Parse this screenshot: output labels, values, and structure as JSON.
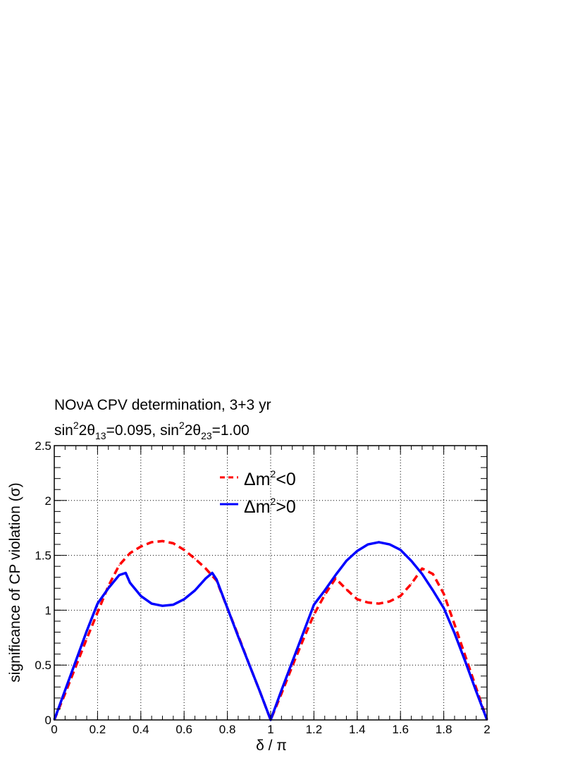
{
  "chart_data": {
    "type": "line",
    "title_line1": "NOνA CPV determination, 3+3 yr",
    "title_line2": {
      "p1": "sin",
      "p2": "2",
      "p3": "2θ",
      "p4": "13",
      "p5": "=0.095, sin",
      "p6": "2",
      "p7": "2θ",
      "p8": "23",
      "p9": "=1.00"
    },
    "xlabel": "δ / π",
    "ylabel": "significance of CP violation (σ)",
    "xlim": [
      0,
      2
    ],
    "ylim": [
      0,
      2.5
    ],
    "x_ticks": [
      "0",
      "0.2",
      "0.4",
      "0.6",
      "0.8",
      "1",
      "1.2",
      "1.4",
      "1.6",
      "1.8",
      "2"
    ],
    "y_ticks": [
      "0",
      "0.5",
      "1",
      "1.5",
      "2",
      "2.5"
    ],
    "grid": true,
    "legend_position": "top-center",
    "series": [
      {
        "name": "Δm²<0",
        "legend_main": "Δm",
        "legend_sup": "2",
        "legend_rest": "<0",
        "color": "#ff0000",
        "style": "dashed",
        "x": [
          0,
          0.05,
          0.1,
          0.15,
          0.2,
          0.25,
          0.3,
          0.35,
          0.4,
          0.45,
          0.5,
          0.55,
          0.6,
          0.65,
          0.7,
          0.75,
          0.8,
          0.85,
          0.9,
          0.95,
          1.0,
          1.05,
          1.1,
          1.15,
          1.2,
          1.25,
          1.3,
          1.35,
          1.4,
          1.45,
          1.5,
          1.55,
          1.6,
          1.65,
          1.7,
          1.75,
          1.8,
          1.85,
          1.9,
          1.95,
          2.0
        ],
        "y": [
          0,
          0.24,
          0.49,
          0.74,
          0.98,
          1.22,
          1.41,
          1.52,
          1.58,
          1.62,
          1.63,
          1.61,
          1.55,
          1.47,
          1.38,
          1.27,
          1.02,
          0.77,
          0.51,
          0.26,
          0,
          0.24,
          0.49,
          0.73,
          0.96,
          1.14,
          1.29,
          1.19,
          1.1,
          1.07,
          1.06,
          1.08,
          1.13,
          1.24,
          1.38,
          1.33,
          1.15,
          0.87,
          0.58,
          0.29,
          0
        ]
      },
      {
        "name": "Δm²>0",
        "legend_main": "Δm",
        "legend_sup": "2",
        "legend_rest": ">0",
        "color": "#0000ff",
        "style": "solid",
        "x": [
          0,
          0.05,
          0.1,
          0.15,
          0.2,
          0.25,
          0.3,
          0.33,
          0.35,
          0.4,
          0.45,
          0.5,
          0.55,
          0.6,
          0.65,
          0.7,
          0.73,
          0.75,
          0.8,
          0.85,
          0.9,
          0.95,
          1.0,
          1.05,
          1.1,
          1.15,
          1.2,
          1.25,
          1.3,
          1.35,
          1.4,
          1.45,
          1.5,
          1.55,
          1.6,
          1.65,
          1.7,
          1.75,
          1.8,
          1.85,
          1.9,
          1.95,
          2.0
        ],
        "y": [
          0,
          0.27,
          0.54,
          0.81,
          1.06,
          1.2,
          1.32,
          1.34,
          1.25,
          1.13,
          1.06,
          1.04,
          1.05,
          1.1,
          1.18,
          1.29,
          1.34,
          1.28,
          1.02,
          0.76,
          0.51,
          0.26,
          0,
          0.27,
          0.53,
          0.79,
          1.05,
          1.18,
          1.32,
          1.45,
          1.54,
          1.6,
          1.62,
          1.6,
          1.55,
          1.45,
          1.33,
          1.18,
          1.02,
          0.79,
          0.53,
          0.26,
          0
        ]
      }
    ]
  }
}
